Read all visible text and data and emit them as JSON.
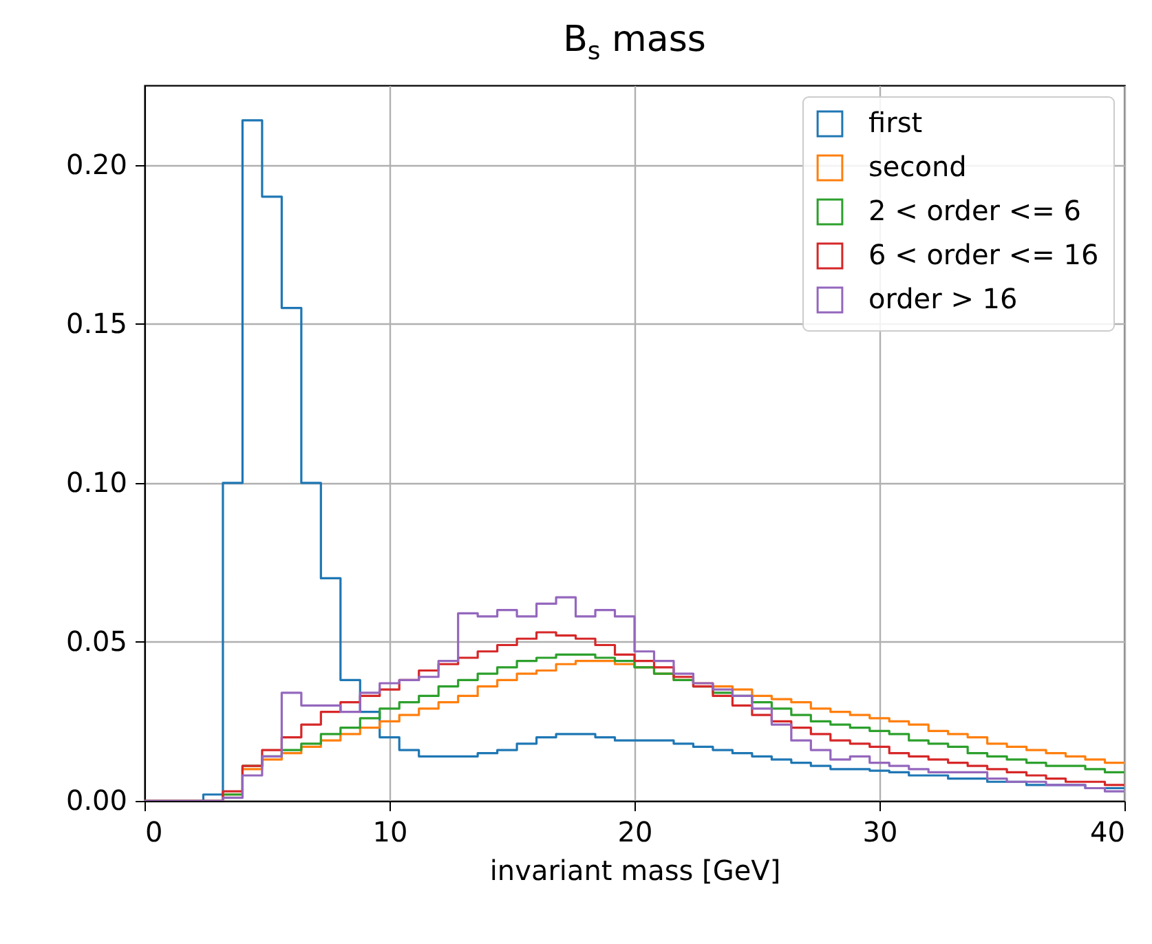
{
  "chart_data": {
    "type": "histogram",
    "title": "B$_{s}$ mass",
    "xlabel": "invariant mass [GeV]",
    "bins": [
      0,
      0.8,
      1.6,
      2.4,
      3.2,
      4.0,
      4.8,
      5.6,
      6.4,
      7.2,
      8.0,
      8.8,
      9.6,
      10.4,
      11.2,
      12.0,
      12.8,
      13.6,
      14.4,
      15.2,
      16.0,
      16.8,
      17.6,
      18.4,
      19.2,
      20.0,
      20.8,
      21.6,
      22.4,
      23.2,
      24.0,
      24.8,
      25.6,
      26.4,
      27.2,
      28.0,
      28.8,
      29.6,
      30.4,
      31.2,
      32.0,
      32.8,
      33.6,
      34.4,
      35.2,
      36.0,
      36.8,
      37.6,
      38.4,
      39.2,
      40.0
    ],
    "series": [
      {
        "name": "first",
        "color": "#1f77b4",
        "values": [
          0,
          0,
          0,
          0.002,
          0.1,
          0.214,
          0.19,
          0.155,
          0.1,
          0.07,
          0.038,
          0.028,
          0.02,
          0.016,
          0.014,
          0.014,
          0.014,
          0.015,
          0.016,
          0.018,
          0.02,
          0.021,
          0.021,
          0.02,
          0.019,
          0.019,
          0.019,
          0.018,
          0.017,
          0.016,
          0.015,
          0.014,
          0.013,
          0.012,
          0.011,
          0.01,
          0.01,
          0.0095,
          0.009,
          0.008,
          0.008,
          0.007,
          0.007,
          0.006,
          0.006,
          0.005,
          0.005,
          0.005,
          0.004,
          0.004
        ]
      },
      {
        "name": "second",
        "color": "#ff7f0e",
        "values": [
          0,
          0,
          0,
          0,
          0.002,
          0.01,
          0.013,
          0.015,
          0.017,
          0.019,
          0.021,
          0.023,
          0.025,
          0.027,
          0.029,
          0.031,
          0.033,
          0.036,
          0.038,
          0.04,
          0.041,
          0.043,
          0.044,
          0.044,
          0.043,
          0.042,
          0.04,
          0.038,
          0.037,
          0.036,
          0.035,
          0.033,
          0.032,
          0.031,
          0.029,
          0.028,
          0.027,
          0.026,
          0.025,
          0.024,
          0.022,
          0.021,
          0.02,
          0.018,
          0.017,
          0.016,
          0.015,
          0.014,
          0.013,
          0.012
        ]
      },
      {
        "name": "2 < order <= 6",
        "color": "#2ca02c",
        "values": [
          0,
          0,
          0,
          0,
          0.002,
          0.011,
          0.014,
          0.016,
          0.018,
          0.021,
          0.023,
          0.026,
          0.029,
          0.031,
          0.033,
          0.036,
          0.038,
          0.04,
          0.042,
          0.044,
          0.045,
          0.046,
          0.046,
          0.045,
          0.044,
          0.042,
          0.04,
          0.038,
          0.036,
          0.034,
          0.033,
          0.031,
          0.029,
          0.027,
          0.025,
          0.024,
          0.023,
          0.022,
          0.021,
          0.019,
          0.018,
          0.017,
          0.015,
          0.014,
          0.013,
          0.012,
          0.011,
          0.011,
          0.01,
          0.009
        ]
      },
      {
        "name": "6 < order <= 16",
        "color": "#d62728",
        "values": [
          0,
          0,
          0,
          0,
          0.003,
          0.011,
          0.016,
          0.02,
          0.024,
          0.028,
          0.031,
          0.033,
          0.035,
          0.038,
          0.041,
          0.043,
          0.045,
          0.047,
          0.049,
          0.051,
          0.053,
          0.052,
          0.051,
          0.049,
          0.046,
          0.044,
          0.042,
          0.039,
          0.036,
          0.033,
          0.03,
          0.027,
          0.025,
          0.023,
          0.021,
          0.019,
          0.018,
          0.017,
          0.015,
          0.014,
          0.013,
          0.012,
          0.011,
          0.01,
          0.009,
          0.008,
          0.007,
          0.006,
          0.006,
          0.005
        ]
      },
      {
        "name": "order > 16",
        "color": "#9467bd",
        "values": [
          0,
          0,
          0,
          0,
          0.001,
          0.008,
          0.014,
          0.034,
          0.03,
          0.03,
          0.028,
          0.034,
          0.037,
          0.038,
          0.039,
          0.044,
          0.059,
          0.058,
          0.06,
          0.058,
          0.062,
          0.064,
          0.058,
          0.06,
          0.058,
          0.047,
          0.044,
          0.04,
          0.037,
          0.035,
          0.033,
          0.029,
          0.024,
          0.019,
          0.016,
          0.013,
          0.014,
          0.012,
          0.011,
          0.01,
          0.009,
          0.009,
          0.009,
          0.007,
          0.006,
          0.006,
          0.005,
          0.005,
          0.004,
          0.003
        ]
      }
    ],
    "xlim": [
      0,
      40
    ],
    "ylim": [
      0,
      0.225
    ],
    "xticks": [
      0,
      10,
      20,
      30,
      40
    ],
    "yticks": [
      {
        "value": 0,
        "label": "0.00"
      },
      {
        "value": 0.05,
        "label": "0.05"
      },
      {
        "value": 0.1,
        "label": "0.10"
      },
      {
        "value": 0.15,
        "label": "0.15"
      },
      {
        "value": 0.2,
        "label": "0.20"
      }
    ],
    "grid": true,
    "legend": "top right"
  }
}
